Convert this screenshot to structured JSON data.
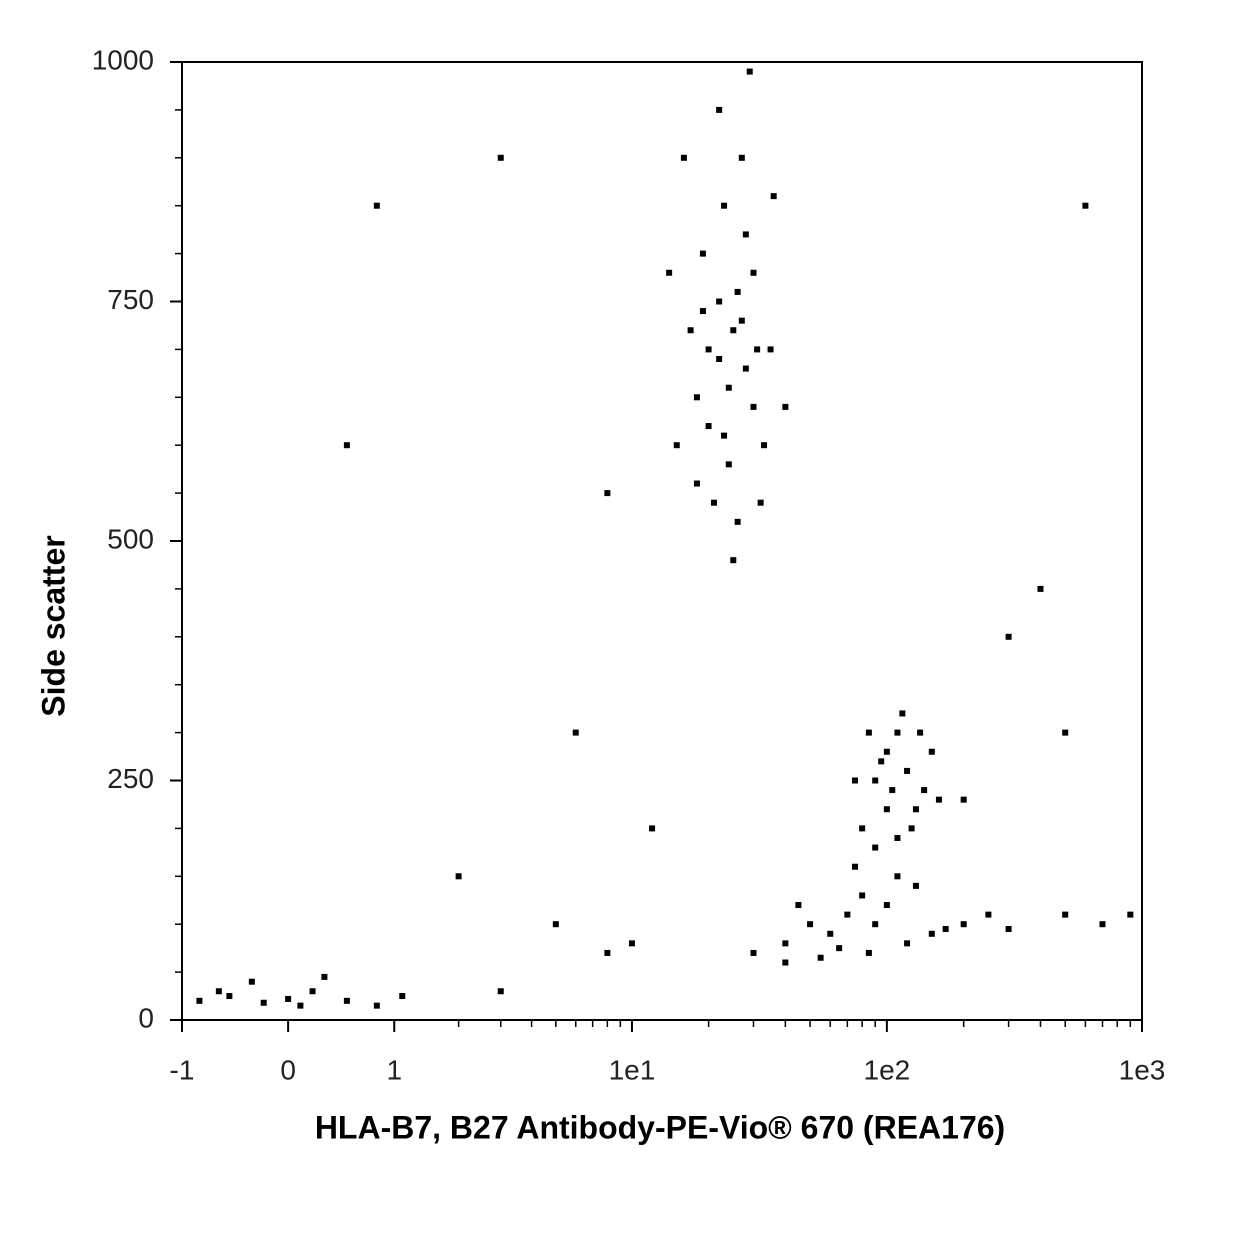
{
  "chart_data": {
    "type": "scatter",
    "xscale": "arcsinh",
    "color": "#000000",
    "xlabel": "HLA-B7, B27 Antibody-PE-Vio® 670 (REA176)",
    "ylabel": "Side scatter",
    "xlim": [
      -1,
      1000
    ],
    "ylim": [
      0,
      1000
    ],
    "xticks": [
      -1,
      0,
      1,
      {
        "value": 10,
        "label": "1e1"
      },
      {
        "value": 100,
        "label": "1e2"
      },
      {
        "value": 1000,
        "label": "1e3"
      }
    ],
    "yticks": [
      0,
      250,
      500,
      750,
      1000
    ],
    "x": [
      15,
      18,
      20,
      22,
      25,
      28,
      30,
      24,
      21,
      26,
      19,
      23,
      27,
      22,
      30,
      33,
      17,
      35,
      20,
      24,
      26,
      28,
      18,
      32,
      25,
      29,
      16,
      36,
      14,
      40,
      22,
      27,
      31,
      23,
      19,
      80,
      90,
      100,
      110,
      120,
      130,
      140,
      100,
      90,
      150,
      85,
      115,
      125,
      105,
      95,
      160,
      200,
      75,
      135,
      110,
      30,
      40,
      50,
      60,
      70,
      80,
      90,
      100,
      120,
      150,
      200,
      250,
      40,
      55,
      65,
      85,
      110,
      130,
      170,
      300,
      500,
      700,
      900,
      45,
      75,
      -0.8,
      -0.5,
      -0.2,
      0,
      0.2,
      0.5,
      0.8,
      1.1,
      -0.3,
      0.3,
      -0.6,
      0.1,
      5,
      8,
      3,
      10,
      2,
      0.5,
      0.8,
      300,
      500,
      600,
      400,
      8,
      6,
      3,
      12
    ],
    "y": [
      600,
      650,
      700,
      750,
      720,
      680,
      640,
      580,
      540,
      520,
      800,
      850,
      900,
      950,
      780,
      600,
      720,
      700,
      620,
      660,
      760,
      820,
      560,
      540,
      480,
      990,
      900,
      860,
      780,
      640,
      690,
      730,
      700,
      610,
      740,
      200,
      250,
      280,
      300,
      260,
      220,
      240,
      220,
      180,
      280,
      300,
      320,
      200,
      240,
      270,
      230,
      230,
      250,
      300,
      190,
      70,
      80,
      100,
      90,
      110,
      130,
      100,
      120,
      80,
      90,
      100,
      110,
      60,
      65,
      75,
      70,
      150,
      140,
      95,
      95,
      110,
      100,
      110,
      120,
      160,
      20,
      25,
      18,
      22,
      30,
      20,
      15,
      25,
      40,
      45,
      30,
      15,
      100,
      70,
      30,
      80,
      150,
      600,
      850,
      400,
      300,
      850,
      450,
      550,
      300,
      900,
      200
    ]
  }
}
